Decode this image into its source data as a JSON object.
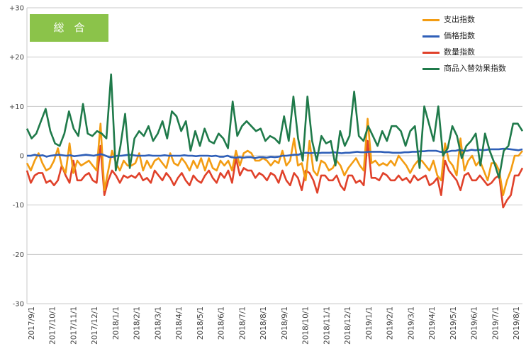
{
  "badge": "総合",
  "colors": {
    "支出指数": "#f39c12",
    "価格指数": "#2f5fb8",
    "数量指数": "#e0412a",
    "商品入替効果指数": "#1f7a4a"
  },
  "chart_data": {
    "type": "line",
    "ylim": [
      -30,
      30
    ],
    "yticks": [
      "+30",
      "+20",
      "+10",
      "0",
      "-10",
      "-20",
      "-30"
    ],
    "ytick_values": [
      30,
      20,
      10,
      0,
      -10,
      -20,
      -30
    ],
    "x_tick_labels": [
      "2017/9/1",
      "2017/10/1",
      "2017/11/1",
      "2017/12/1",
      "2018/1/1",
      "2018/2/1",
      "2018/3/1",
      "2018/4/1",
      "2018/5/1",
      "2018/6/1",
      "2018/7/1",
      "2018/8/1",
      "2018/9/1",
      "2018/10/1",
      "2018/11/1",
      "2018/12/1",
      "2019/1/1",
      "2019/2/1",
      "2019/3/1",
      "2019/4/1",
      "2019/5/1",
      "2019/6/1",
      "2019/7/1",
      "2019/8/1"
    ],
    "grid": "horizontal",
    "legend_position": "top-right",
    "series": [
      {
        "name": "支出指数",
        "values": [
          -1.5,
          -3,
          -1,
          0.5,
          -1.5,
          -3,
          -2.5,
          -1,
          1.5,
          -2,
          -3.5,
          2.5,
          -3.5,
          -1,
          -2,
          -1.5,
          -1,
          -2,
          -3,
          6.5,
          -7,
          -3,
          1,
          -1.5,
          -3,
          -1,
          -2,
          -2,
          -1.5,
          0.5,
          -3,
          -1,
          -2.5,
          -1,
          -0.5,
          -1.5,
          -2.5,
          0.5,
          -1.5,
          -2,
          -0.5,
          -1.5,
          -3,
          -1,
          -2.5,
          -0.5,
          -3,
          -0.5,
          -2.5,
          -3,
          -1,
          -2,
          -1,
          -3,
          1,
          -2,
          0.5,
          1,
          0.5,
          -1,
          -1,
          -0.5,
          -1,
          -2,
          -1,
          -1.5,
          1,
          -2,
          -1,
          3.5,
          -2,
          -1.5,
          -5,
          3,
          -3,
          -4,
          -1,
          -1.5,
          -3,
          -2.5,
          -1,
          -2,
          -4,
          -2.5,
          -1.5,
          -0.5,
          -2,
          -3,
          7.5,
          -1.5,
          -1,
          -2,
          -1.5,
          -2,
          -1,
          -2,
          0,
          -1,
          -2,
          -3.5,
          -2,
          -1,
          -1,
          -2,
          -3,
          -1,
          -4,
          -5,
          2.5,
          -1,
          -2,
          -4,
          3.5,
          -3,
          -1,
          0,
          -2,
          -1,
          -3,
          -5,
          -1.5,
          -1.5,
          -3,
          -8,
          -5,
          -3,
          0,
          0,
          1
        ],
        "unit_step": 1
      },
      {
        "name": "価格指数",
        "values": [
          0,
          0,
          0.2,
          0,
          0.1,
          -0.2,
          0,
          0.1,
          0.2,
          0.1,
          0,
          0.1,
          -0.1,
          0,
          0.1,
          0.2,
          0.1,
          0,
          0.2,
          0.3,
          0,
          -0.3,
          -0.2,
          0,
          0,
          0.1,
          0.2,
          0.1,
          0,
          0,
          0,
          0.1,
          0,
          0,
          0,
          0.1,
          0,
          0,
          0,
          0,
          0.1,
          0,
          0,
          -0.1,
          0,
          0,
          0,
          -0.1,
          0,
          -0.2,
          -0.2,
          0,
          -0.3,
          -0.4,
          -0.3,
          -0.4,
          -0.3,
          -0.3,
          -0.5,
          -0.3,
          -0.3,
          -0.4,
          -0.2,
          -0.3,
          -0.2,
          0,
          0,
          0.1,
          0.2,
          0.2,
          0.5,
          0.6,
          0.5,
          0.6,
          0.5,
          0.6,
          0.6,
          0.6,
          0.7,
          0.6,
          0.5,
          0.6,
          0.6,
          0.7,
          0.8,
          0.7,
          0.7,
          0.8,
          0.8,
          0.8,
          0.8,
          0.7,
          0.7,
          0.6,
          0.6,
          0.6,
          0.7,
          0.7,
          0.8,
          0.8,
          0.9,
          0.9,
          1.0,
          1.0,
          1.0,
          0.8,
          0.7,
          0.8,
          1.0,
          1.0,
          1.2,
          1.0,
          1.0,
          1.2,
          1.1,
          1.2,
          1.1,
          1.2,
          1.3,
          1.3,
          1.3,
          1.4,
          1.4,
          1.3,
          1.2,
          1.1,
          1.3
        ],
        "unit_step": 1
      },
      {
        "name": "数量指数",
        "values": [
          -3,
          -5.5,
          -4,
          -3.5,
          -3.5,
          -5.5,
          -5,
          -6,
          -5,
          -2,
          -4,
          -5.5,
          -1,
          -5,
          -5,
          -4,
          -3.5,
          -5,
          -5.5,
          2,
          -8,
          -5,
          -3,
          -4,
          -5.5,
          -4,
          -4.5,
          -4,
          -4.5,
          -3.5,
          -5,
          -4.5,
          -5.5,
          -3,
          -4,
          -5,
          -3.5,
          -4.5,
          -6,
          -4.5,
          -3.5,
          -5,
          -6,
          -4,
          -5,
          -5.5,
          -4,
          -3,
          -4.5,
          -5.5,
          -3.5,
          -4.5,
          -3,
          -5.5,
          -0.5,
          -4,
          -2.5,
          -3,
          -3,
          -4.5,
          -3.5,
          -4,
          -5,
          -3.5,
          -4,
          -5.5,
          -3,
          -5,
          -6,
          -3.5,
          -4.5,
          -7,
          -3,
          -3.5,
          -5,
          -7.5,
          -4,
          -4,
          -5,
          -5,
          -4,
          -6,
          -7,
          -4,
          -4,
          -5.5,
          -5,
          -6,
          3,
          -4.5,
          -4.5,
          -5,
          -3.5,
          -4,
          -5,
          -5,
          -4,
          -5,
          -4.5,
          -5.5,
          -4,
          -5,
          -4.5,
          -4,
          -6,
          -5.5,
          -4.5,
          -8,
          -1,
          -3,
          -4,
          -5,
          -7,
          -4,
          -3.5,
          -5,
          -5,
          -4,
          -5,
          -6,
          -5.5,
          -4.5,
          -4,
          -10.5,
          -9,
          -8,
          -4,
          -4,
          -2.5
        ],
        "unit_step": 1
      },
      {
        "name": "商品入替効果指数",
        "values": [
          5.5,
          3.5,
          4.5,
          7,
          9.5,
          5,
          2.5,
          2,
          4.5,
          9,
          5.5,
          4,
          10.5,
          4.5,
          4,
          5,
          4.5,
          3.5,
          16.5,
          -3,
          2,
          8.5,
          -2.5,
          3.5,
          5,
          4,
          6,
          3,
          4.5,
          7,
          3.5,
          9,
          8,
          5,
          7,
          1,
          5,
          2,
          5.5,
          3,
          2.5,
          4.5,
          3.5,
          1.5,
          11,
          4,
          6,
          7,
          6,
          5,
          5.5,
          3,
          4,
          3.5,
          2.5,
          8,
          3,
          12,
          3.5,
          -1,
          12,
          3,
          -1,
          4,
          2.5,
          3,
          -2,
          5,
          2,
          4,
          13,
          4,
          3,
          6,
          4,
          2,
          5,
          3,
          6,
          6,
          5,
          2,
          5,
          6,
          -2.5,
          10,
          6.5,
          3,
          10,
          0,
          1.5,
          6,
          4,
          -0.5,
          2,
          3,
          4.5,
          -2,
          4.5,
          1,
          -1.5,
          -4.5,
          1,
          2,
          6.5,
          6.5,
          5
        ],
        "unit_step": 1
      }
    ]
  }
}
